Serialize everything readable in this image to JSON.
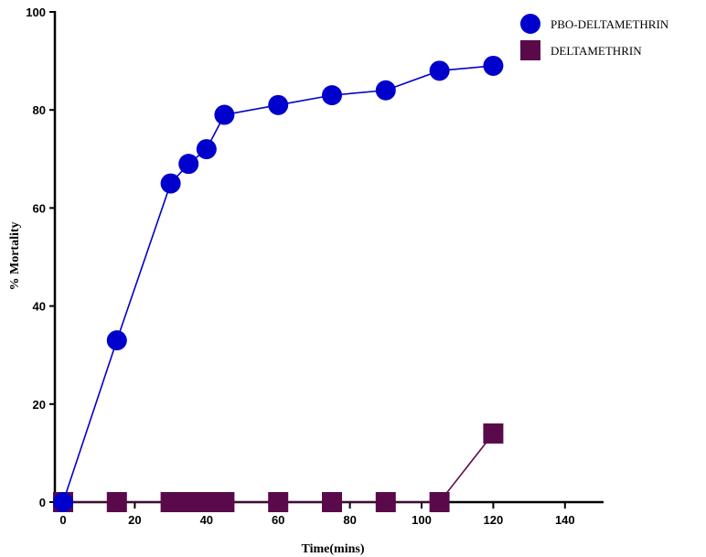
{
  "chart_data": {
    "type": "line",
    "title": "",
    "xlabel": "Time(mins)",
    "ylabel": "% Mortality",
    "xlim": [
      0,
      150
    ],
    "ylim": [
      0,
      100
    ],
    "x_ticks": [
      0,
      20,
      40,
      60,
      80,
      100,
      120,
      140
    ],
    "y_ticks": [
      0,
      20,
      40,
      60,
      80,
      100
    ],
    "grid": false,
    "legend_position": "top-right",
    "series": [
      {
        "name": "PBO-DELTAMETHRIN",
        "marker": "circle",
        "color": "#0000cc",
        "x": [
          0,
          15,
          30,
          35,
          40,
          45,
          60,
          75,
          90,
          105,
          120
        ],
        "y": [
          0,
          33,
          65,
          69,
          72,
          79,
          81,
          83,
          84,
          88,
          89
        ]
      },
      {
        "name": "DELTAMETHRIN",
        "marker": "square",
        "color": "#5a0a4a",
        "x": [
          0,
          15,
          30,
          35,
          40,
          45,
          60,
          75,
          90,
          105,
          120
        ],
        "y": [
          0,
          0,
          0,
          0,
          0,
          0,
          0,
          0,
          0,
          0,
          14
        ]
      }
    ]
  }
}
